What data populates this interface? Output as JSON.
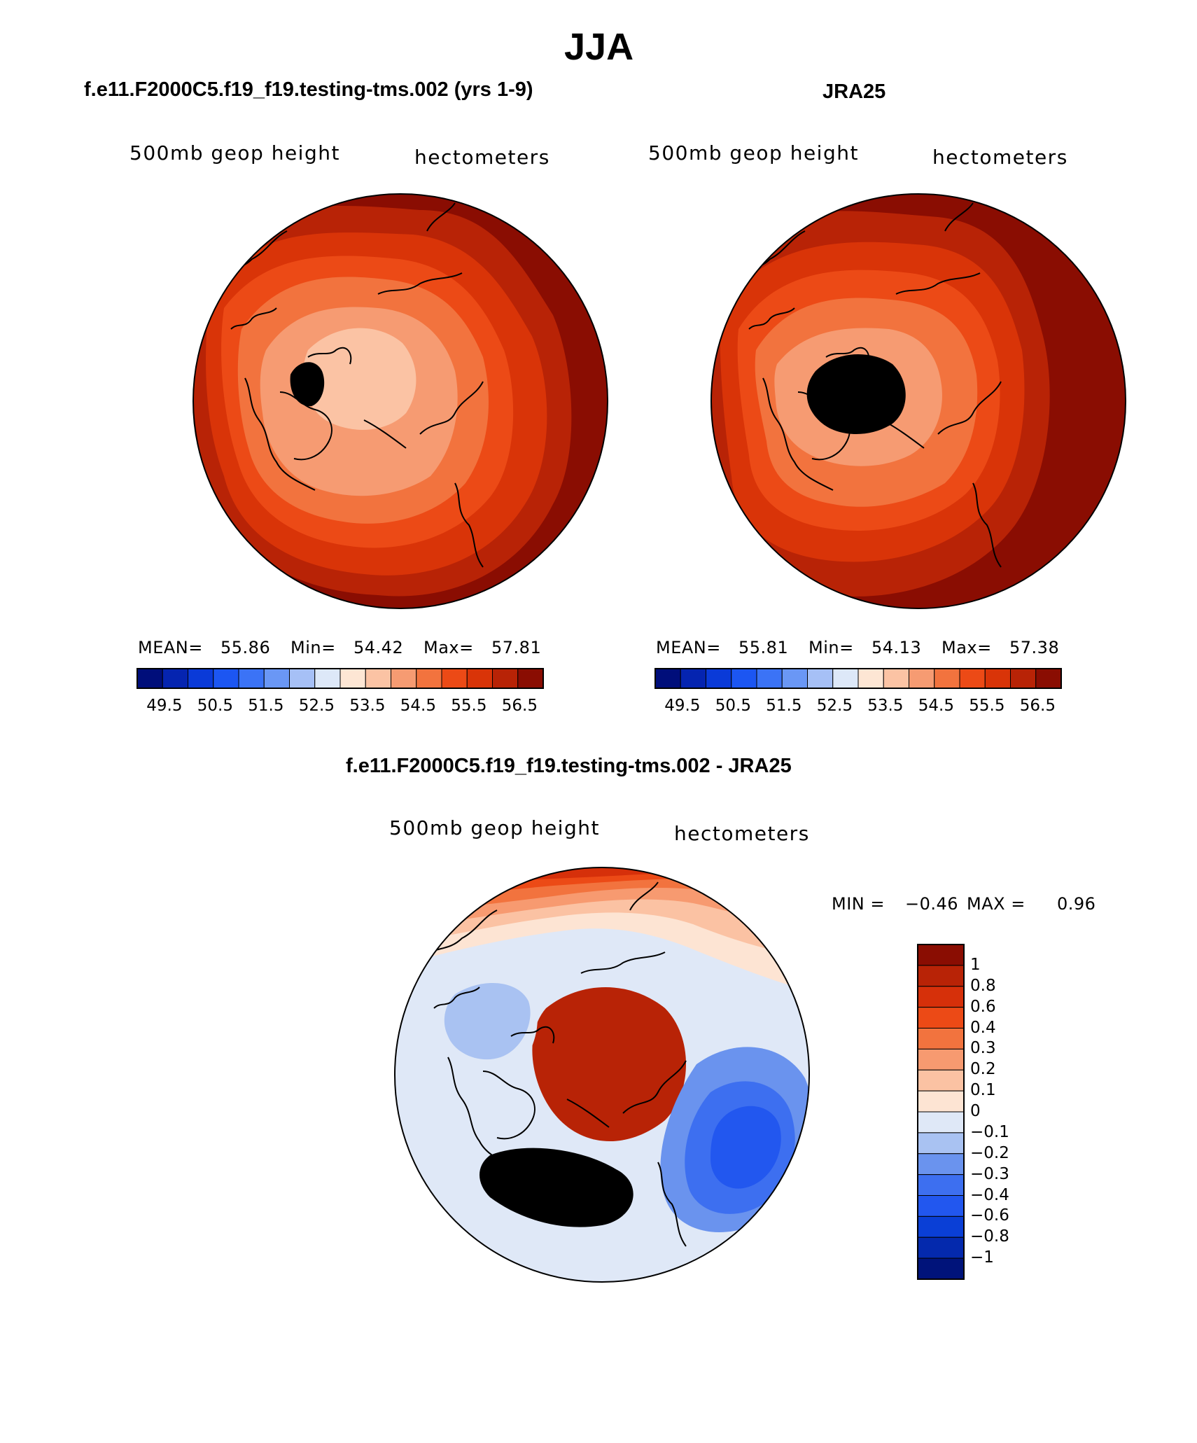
{
  "title": "JJA",
  "panels": [
    {
      "id": "model",
      "title": "f.e11.F2000C5.f19_f19.testing-tms.002 (yrs 1-9)",
      "variable": "500mb geop height",
      "units": "hectometers",
      "stats": {
        "mean_label": "MEAN=",
        "mean": "55.86",
        "min_label": "Min=",
        "min": "54.42",
        "max_label": "Max=",
        "max": "57.81"
      },
      "colorbar_ticks": [
        "49.5",
        "50.5",
        "51.5",
        "52.5",
        "53.5",
        "54.5",
        "55.5",
        "56.5"
      ]
    },
    {
      "id": "obs",
      "title": "JRA25",
      "variable": "500mb geop height",
      "units": "hectometers",
      "stats": {
        "mean_label": "MEAN=",
        "mean": "55.81",
        "min_label": "Min=",
        "min": "54.13",
        "max_label": "Max=",
        "max": "57.38"
      },
      "colorbar_ticks": [
        "49.5",
        "50.5",
        "51.5",
        "52.5",
        "53.5",
        "54.5",
        "55.5",
        "56.5"
      ]
    },
    {
      "id": "diff",
      "title": "f.e11.F2000C5.f19_f19.testing-tms.002 - JRA25",
      "variable": "500mb geop height",
      "units": "hectometers",
      "stats": {
        "min_label": "MIN =",
        "min": "−0.46",
        "max_label": "MAX =",
        "max": "0.96"
      },
      "colorbar_ticks": [
        "1",
        "0.8",
        "0.6",
        "0.4",
        "0.3",
        "0.2",
        "0.1",
        "0",
        "−0.1",
        "−0.2",
        "−0.3",
        "−0.4",
        "−0.6",
        "−0.8",
        "−1"
      ]
    }
  ],
  "palettes": {
    "abs": [
      "#000e7a",
      "#0524b0",
      "#0a3ad8",
      "#1c56f2",
      "#3b73f6",
      "#6a97f5",
      "#a6c0f6",
      "#dde8f8",
      "#fde6d4",
      "#fbc3a4",
      "#f69b72",
      "#f2733e",
      "#ec4a16",
      "#d93408",
      "#b82306",
      "#8a0d02"
    ],
    "diff": [
      "#00137a",
      "#0429ad",
      "#0a3fd6",
      "#2257ef",
      "#3d6ff0",
      "#6a93ee",
      "#a9c2f2",
      "#dfe8f7",
      "#fde4d3",
      "#fbc2a3",
      "#f79a70",
      "#f2733e",
      "#ec4a16",
      "#d6300a",
      "#b82306",
      "#8a0d02"
    ]
  },
  "map_data": {
    "projection": "north-polar-stereographic",
    "model_fill_order": [
      15,
      14,
      13,
      12,
      11,
      10,
      9
    ],
    "obs_fill_order": [
      15,
      14,
      13,
      12,
      11,
      10
    ],
    "diff_fill_order": [
      8,
      9,
      10,
      11,
      12,
      13,
      14,
      7,
      6,
      5,
      4,
      3
    ]
  }
}
